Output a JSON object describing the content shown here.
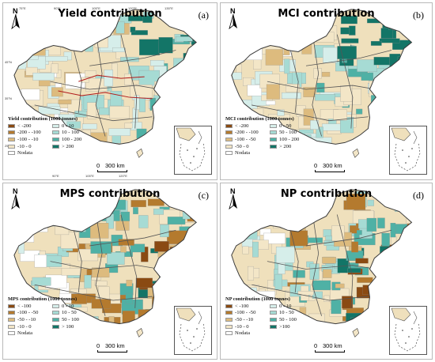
{
  "panels": [
    {
      "id": "a",
      "title": "Yield contribution",
      "letter": "(a)",
      "legend": {
        "title": "Yield contribution (1000 tonnes)",
        "items": [
          {
            "label": "< -200",
            "color": "#8a4a12"
          },
          {
            "label": "0 - 10",
            "color": "#d6eeea"
          },
          {
            "label": "-200 - -100",
            "color": "#b47a2e"
          },
          {
            "label": "10 - 100",
            "color": "#a6dbd4"
          },
          {
            "label": "-100 - -10",
            "color": "#ddbb7e"
          },
          {
            "label": "100 - 200",
            "color": "#4fb1a5"
          },
          {
            "label": "-10 - 0",
            "color": "#f3e6c7"
          },
          {
            "label": "> 200",
            "color": "#137567"
          },
          {
            "label": "Nodata",
            "color": "#ffffff"
          }
        ]
      },
      "scale": {
        "zero": "0",
        "value": "300 km"
      },
      "lon_top": [
        "75°E",
        "90°E",
        "105°E",
        "120°E",
        "135°E"
      ],
      "lat": [
        "45°N",
        "35°N",
        "25°N"
      ],
      "lon_bottom": [
        "90°E",
        "105°E",
        "120°E"
      ]
    },
    {
      "id": "b",
      "title": "MCI contribution",
      "letter": "(b)",
      "legend": {
        "title": "MCI contribution (1000 tonnes)",
        "items": [
          {
            "label": "< -200",
            "color": "#8a4a12"
          },
          {
            "label": "0 - 50",
            "color": "#d6eeea"
          },
          {
            "label": "-200 - -100",
            "color": "#b47a2e"
          },
          {
            "label": "50 - 100",
            "color": "#a6dbd4"
          },
          {
            "label": "-100 - -50",
            "color": "#ddbb7e"
          },
          {
            "label": "100 - 200",
            "color": "#4fb1a5"
          },
          {
            "label": "-50 - 0",
            "color": "#f3e6c7"
          },
          {
            "label": "> 200",
            "color": "#137567"
          },
          {
            "label": "Nodata",
            "color": "#ffffff"
          }
        ]
      },
      "scale": {
        "zero": "0",
        "value": "300 km"
      }
    },
    {
      "id": "c",
      "title": "MPS contribution",
      "letter": "(c)",
      "legend": {
        "title": "MPS contribution (1000 tonnes)",
        "items": [
          {
            "label": "< -100",
            "color": "#8a4a12"
          },
          {
            "label": "0 - 10",
            "color": "#d6eeea"
          },
          {
            "label": "-100 - -50",
            "color": "#b47a2e"
          },
          {
            "label": "10 - 50",
            "color": "#a6dbd4"
          },
          {
            "label": "-50 - -10",
            "color": "#ddbb7e"
          },
          {
            "label": "50 - 100",
            "color": "#4fb1a5"
          },
          {
            "label": "-10 - 0",
            "color": "#f3e6c7"
          },
          {
            "label": "> 100",
            "color": "#137567"
          },
          {
            "label": "Nodata",
            "color": "#ffffff"
          }
        ]
      },
      "scale": {
        "zero": "0",
        "value": "300 km"
      }
    },
    {
      "id": "d",
      "title": "NP contribution",
      "letter": "(d)",
      "legend": {
        "title": "NP contribution (1000 tonnes)",
        "items": [
          {
            "label": "< -100",
            "color": "#8a4a12"
          },
          {
            "label": "0 - 10",
            "color": "#d6eeea"
          },
          {
            "label": "-100 - -50",
            "color": "#b47a2e"
          },
          {
            "label": "10 - 50",
            "color": "#a6dbd4"
          },
          {
            "label": "-50 - -10",
            "color": "#ddbb7e"
          },
          {
            "label": "50 - 100",
            "color": "#4fb1a5"
          },
          {
            "label": "-10 - 0",
            "color": "#f3e6c7"
          },
          {
            "label": ">100",
            "color": "#137567"
          },
          {
            "label": "Nodata",
            "color": "#ffffff"
          }
        ]
      },
      "scale": {
        "zero": "0",
        "value": "300 km"
      }
    }
  ],
  "north_label": "N",
  "map_style": {
    "boundary": "#3a3a3a",
    "region_border": "#555555",
    "rivers": "#b11a1a"
  }
}
